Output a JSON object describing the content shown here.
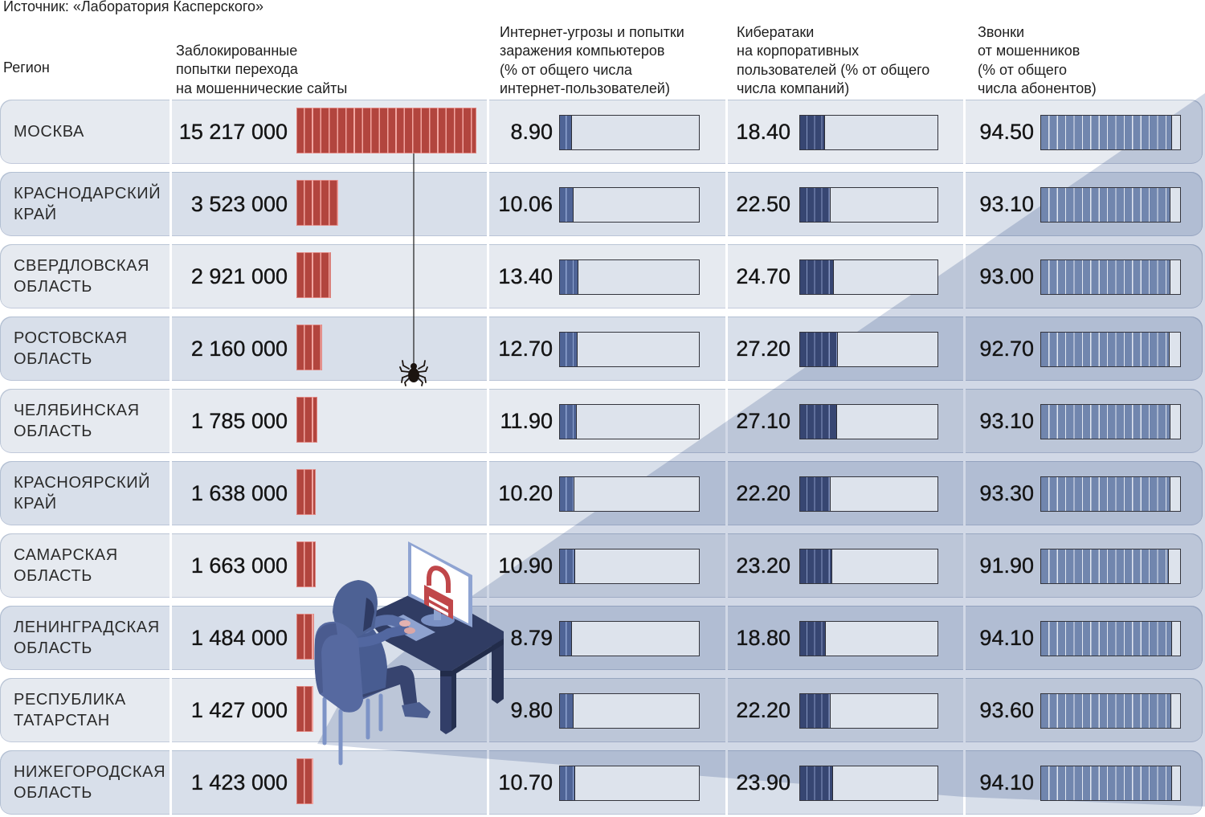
{
  "source": "Источник: «Лаборатория Касперского»",
  "headers": {
    "region": "Регион",
    "blocked": [
      "Заблокированные",
      "попытки перехода",
      "на мошеннические сайты"
    ],
    "threats": [
      "Интернет-угрозы и попытки",
      "заражения компьютеров",
      "(% от общего числа",
      "интернет-пользователей)"
    ],
    "cyberattacks": [
      "Кибератаки",
      "на корпоративных",
      "пользователей  (% от общего",
      "числа компаний)"
    ],
    "calls": [
      "Звонки",
      "от мошенников",
      "(% от общего",
      "числа абонентов)"
    ]
  },
  "colors": {
    "blocked": "#b2453e",
    "threats": "#4f6496",
    "cyberattacks": "#374672",
    "calls": "#7186ae",
    "row_light": "#e6eaf0",
    "row_dark": "#d8dfea"
  },
  "chart_data": {
    "type": "table",
    "title": "",
    "source": "Источник: «Лаборатория Касперского»",
    "category_label": "Регион",
    "categories": [
      "МОСКВА",
      "КРАСНОДАРСКИЙ КРАЙ",
      "СВЕРДЛОВСКАЯ ОБЛАСТЬ",
      "РОСТОВСКАЯ ОБЛАСТЬ",
      "ЧЕЛЯБИНСКАЯ ОБЛАСТЬ",
      "КРАСНОЯРСКИЙ КРАЙ",
      "САМАРСКАЯ ОБЛАСТЬ",
      "ЛЕНИНГРАДСКАЯ ОБЛАСТЬ",
      "РЕСПУБЛИКА ТАТАРСТАН",
      "НИЖЕГОРОДСКАЯ ОБЛАСТЬ"
    ],
    "series": [
      {
        "key": "blocked",
        "name": "Заблокированные попытки перехода на мошеннические сайты",
        "unit": "count",
        "chart": "bar",
        "values": [
          15217000,
          3523000,
          2921000,
          2160000,
          1785000,
          1638000,
          1663000,
          1484000,
          1427000,
          1423000
        ]
      },
      {
        "key": "threats",
        "name": "Интернет-угрозы и попытки заражения компьютеров (% от общего числа интернет-пользователей)",
        "unit": "%",
        "chart": "bar",
        "range": [
          0,
          100
        ],
        "values": [
          8.9,
          10.06,
          13.4,
          12.7,
          11.9,
          10.2,
          10.9,
          8.79,
          9.8,
          10.7
        ]
      },
      {
        "key": "cyberattacks",
        "name": "Кибератаки на корпоративных пользователей (% от общего числа компаний)",
        "unit": "%",
        "chart": "bar",
        "range": [
          0,
          100
        ],
        "values": [
          18.4,
          22.5,
          24.7,
          27.2,
          27.1,
          22.2,
          23.2,
          18.8,
          22.2,
          23.9
        ]
      },
      {
        "key": "calls",
        "name": "Звонки от мошенников (% от общего числа абонентов)",
        "unit": "%",
        "chart": "bar",
        "range": [
          0,
          100
        ],
        "values": [
          94.5,
          93.1,
          93.0,
          92.7,
          93.1,
          93.3,
          91.9,
          94.1,
          93.6,
          94.1
        ]
      }
    ]
  }
}
